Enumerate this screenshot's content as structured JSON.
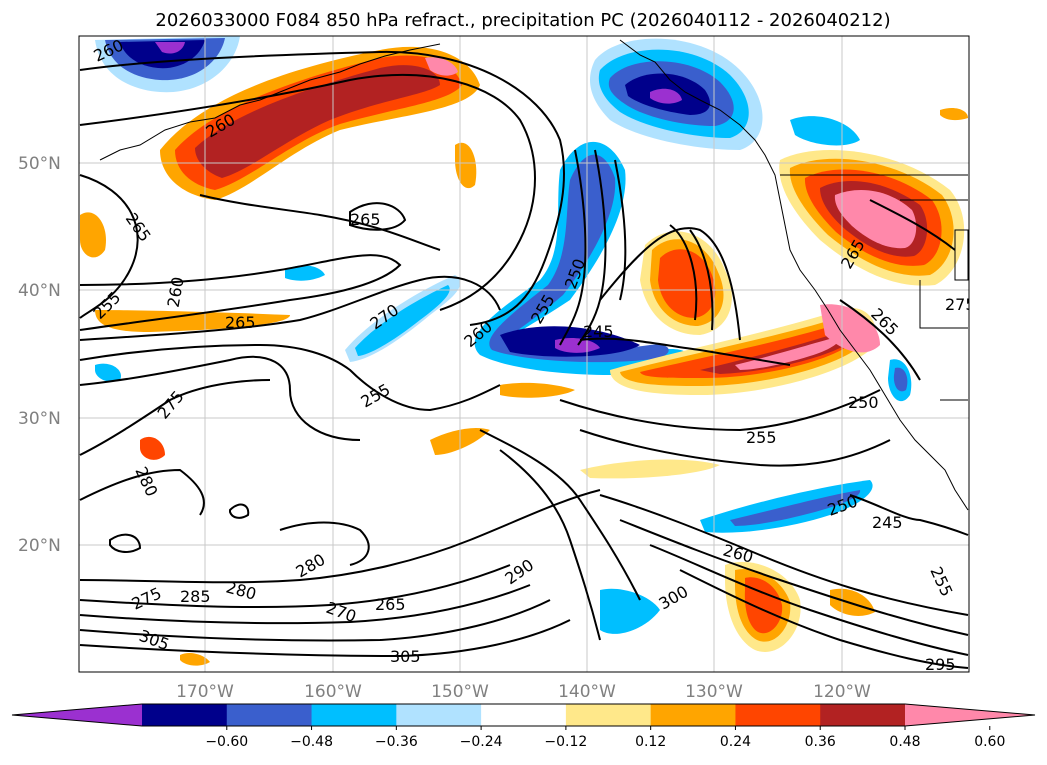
{
  "map": {
    "title": "2026033000 F084 850 hPa refract., precipitation PC (2026040112 - 2026040212)",
    "lat_labels": [
      "50°N",
      "40°N",
      "30°N",
      "20°N"
    ],
    "lon_labels": [
      "170°W",
      "160°W",
      "150°W",
      "140°W",
      "130°W",
      "120°W"
    ],
    "colorbar": {
      "colors": [
        "#9b30d0",
        "#00008b",
        "#3a5fcd",
        "#00bfff",
        "#b0e2ff",
        "#ffffff",
        "#ffe88a",
        "#ffa500",
        "#ff4500",
        "#b22222",
        "#ff88aa"
      ],
      "ticks": [
        "−0.60",
        "−0.48",
        "−0.36",
        "−0.24",
        "−0.12",
        "0.12",
        "0.24",
        "0.36",
        "0.48",
        "0.60"
      ]
    },
    "contour_labels": [
      "260",
      "260",
      "265",
      "265",
      "260",
      "255",
      "265",
      "270",
      "255",
      "260",
      "255",
      "250",
      "245",
      "250",
      "255",
      "250",
      "245",
      "255",
      "275",
      "280",
      "280",
      "285",
      "275",
      "280",
      "270",
      "265",
      "290",
      "300",
      "260",
      "305",
      "305",
      "295",
      "265",
      "265",
      "275"
    ]
  }
}
